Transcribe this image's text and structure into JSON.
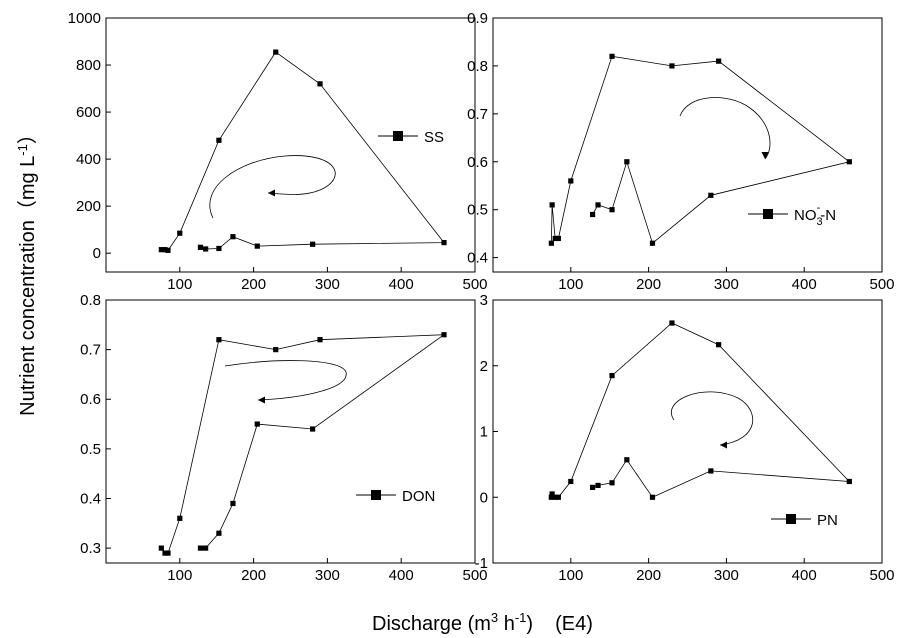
{
  "figure": {
    "ylabel_main": "Nutrient concentration（mg L",
    "ylabel_sup": "-1",
    "ylabel_close": "）",
    "xlabel_main": "Discharge (m",
    "xlabel_sup1": "3",
    "xlabel_mid": " h",
    "xlabel_sup2": "-1",
    "xlabel_close": ")",
    "xlabel_scale": "(E4)"
  },
  "chart_data": [
    {
      "type": "line",
      "panel": "top-left",
      "xlim": [
        0,
        500
      ],
      "ylim": [
        -80,
        1000
      ],
      "xticks": [
        100,
        200,
        300,
        400,
        500
      ],
      "yticks": [
        0,
        200,
        400,
        600,
        800,
        1000
      ],
      "series": [
        {
          "name": "SS",
          "x": [
            75,
            80,
            84,
            100,
            153,
            230,
            290,
            458,
            280,
            205,
            172,
            153,
            135,
            128
          ],
          "y": [
            15,
            15,
            12,
            85,
            480,
            855,
            720,
            45,
            38,
            30,
            70,
            20,
            18,
            25
          ]
        }
      ],
      "legend": {
        "label": "SS",
        "label_sub": "",
        "label_sup": "",
        "label_tail": "",
        "position": "right"
      },
      "annotation_arrow": {
        "direction": "counterclockwise",
        "shape": "spiral"
      }
    },
    {
      "type": "line",
      "panel": "top-right",
      "xlim": [
        0,
        500
      ],
      "ylim": [
        0.37,
        0.9
      ],
      "xticks": [
        100,
        200,
        300,
        400,
        500
      ],
      "yticks": [
        0.4,
        0.5,
        0.6,
        0.7,
        0.8,
        0.9
      ],
      "series": [
        {
          "name": "NO3--N",
          "x": [
            75,
            76,
            80,
            84,
            100,
            153,
            230,
            290,
            458,
            280,
            205,
            172,
            153,
            135,
            128
          ],
          "y": [
            0.43,
            0.51,
            0.44,
            0.44,
            0.56,
            0.82,
            0.8,
            0.81,
            0.6,
            0.53,
            0.43,
            0.6,
            0.5,
            0.51,
            0.49
          ]
        }
      ],
      "legend": {
        "label": "NO",
        "label_sub": "3",
        "label_sup": "-",
        "label_tail": "-N",
        "position": "right"
      },
      "annotation_arrow": {
        "direction": "clockwise",
        "shape": "curve"
      }
    },
    {
      "type": "line",
      "panel": "bottom-left",
      "xlim": [
        0,
        500
      ],
      "ylim": [
        0.27,
        0.8
      ],
      "xticks": [
        100,
        200,
        300,
        400,
        500
      ],
      "yticks": [
        0.3,
        0.4,
        0.5,
        0.6,
        0.7,
        0.8
      ],
      "series": [
        {
          "name": "DON",
          "x": [
            75,
            80,
            84,
            100,
            153,
            230,
            290,
            458,
            280,
            205,
            172,
            153,
            135,
            128
          ],
          "y": [
            0.3,
            0.29,
            0.29,
            0.36,
            0.72,
            0.7,
            0.72,
            0.73,
            0.54,
            0.55,
            0.39,
            0.33,
            0.3,
            0.3
          ]
        }
      ],
      "legend": {
        "label": "DON",
        "label_sub": "",
        "label_sup": "",
        "label_tail": "",
        "position": "right"
      },
      "annotation_arrow": {
        "direction": "counterclockwise",
        "shape": "hook"
      }
    },
    {
      "type": "line",
      "panel": "bottom-right",
      "xlim": [
        0,
        500
      ],
      "ylim": [
        -1,
        3
      ],
      "xticks": [
        100,
        200,
        300,
        400,
        500
      ],
      "yticks": [
        -1,
        0,
        1,
        2,
        3
      ],
      "series": [
        {
          "name": "PN",
          "x": [
            75,
            76,
            80,
            84,
            100,
            153,
            230,
            290,
            458,
            280,
            205,
            172,
            153,
            135,
            128
          ],
          "y": [
            0.0,
            0.05,
            0.0,
            0.0,
            0.24,
            1.85,
            2.65,
            2.32,
            0.24,
            0.4,
            0.0,
            0.57,
            0.22,
            0.18,
            0.15
          ]
        }
      ],
      "legend": {
        "label": "PN",
        "label_sub": "",
        "label_sup": "",
        "label_tail": "",
        "position": "right"
      },
      "annotation_arrow": {
        "direction": "counterclockwise",
        "shape": "spiral"
      }
    }
  ]
}
